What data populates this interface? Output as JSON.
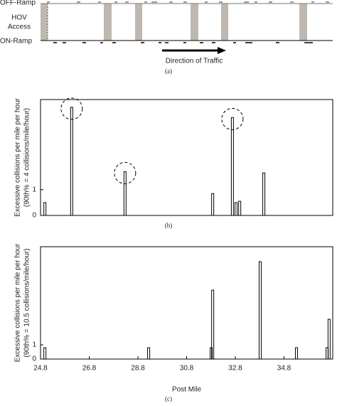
{
  "panel_a": {
    "off_ramp": "OFF-Ramp",
    "hov": "HOV",
    "access": "Access",
    "on_ramp": "ON-Ramp",
    "arrow_label": "Direction of Traffic",
    "caption": "(a)"
  },
  "chart_data": [
    {
      "type": "bar",
      "caption": "(b)",
      "y_label": [
        "Excessive collisions per mile per hour",
        "(90th% = 4 collisions/mile/hour)"
      ],
      "x": [
        24.98,
        26.08,
        28.27,
        31.87,
        32.68,
        32.83,
        32.98,
        33.97
      ],
      "values": [
        0.5,
        4.2,
        1.7,
        0.85,
        3.8,
        0.5,
        0.55,
        1.65
      ],
      "color": "#000000",
      "xlim": [
        24.8,
        36.8
      ],
      "ylim": [
        0,
        4.5
      ],
      "yticks": [
        0,
        1
      ]
    },
    {
      "type": "bar",
      "caption": "(c)",
      "y_label": [
        "Excessive collisions per mile per hour",
        "(90th% = 10.5 collisions/mile/hour)"
      ],
      "x_label": "Post Mile",
      "x": [
        24.98,
        29.24,
        31.81,
        31.87,
        33.82,
        35.31,
        36.57,
        36.65
      ],
      "values": [
        0.8,
        0.8,
        0.8,
        4.85,
        6.85,
        0.8,
        0.8,
        2.8
      ],
      "color": "#000000",
      "xlim": [
        24.8,
        36.8
      ],
      "ylim": [
        0,
        7.9
      ],
      "yticks": [
        0,
        1
      ],
      "xticks": [
        24.8,
        26.8,
        28.8,
        30.8,
        32.8,
        34.8
      ]
    }
  ]
}
